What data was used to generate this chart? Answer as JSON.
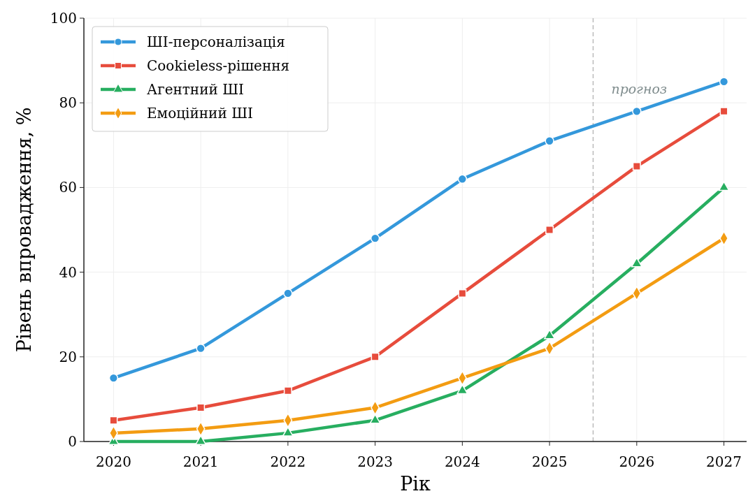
{
  "chart_data": {
    "type": "line",
    "xlabel": "Рік",
    "ylabel": "Рівень впровадження, %",
    "x": [
      2020,
      2021,
      2022,
      2023,
      2024,
      2025,
      2026,
      2027
    ],
    "xlim": [
      2019.66,
      2027.26
    ],
    "xticks": [
      2020,
      2021,
      2022,
      2023,
      2024,
      2025,
      2026,
      2027
    ],
    "ylim": [
      0,
      100
    ],
    "yticks": [
      0,
      20,
      40,
      60,
      80,
      100
    ],
    "grid": true,
    "legend": "top left",
    "line_style": "solid",
    "series": [
      {
        "name": "ШІ-персоналізація",
        "color": "#3498db",
        "marker": "circle",
        "values": [
          15,
          22,
          35,
          48,
          62,
          71,
          78,
          85
        ]
      },
      {
        "name": "Cookieless-рішення",
        "color": "#e74c3c",
        "marker": "square",
        "values": [
          5,
          8,
          12,
          20,
          35,
          50,
          65,
          78
        ]
      },
      {
        "name": "Агентний ШІ",
        "color": "#27ae60",
        "marker": "triangle",
        "values": [
          0,
          0,
          2,
          5,
          12,
          25,
          42,
          60
        ]
      },
      {
        "name": "Емоційний ШІ",
        "color": "#f39c12",
        "marker": "diamond",
        "values": [
          2,
          3,
          5,
          8,
          15,
          22,
          35,
          48
        ]
      }
    ],
    "ref_lines": [
      {
        "axis": "x",
        "value": 2025.5,
        "label": "прогноз",
        "color": "#bbbbbb",
        "line_style": "dashed"
      }
    ]
  }
}
